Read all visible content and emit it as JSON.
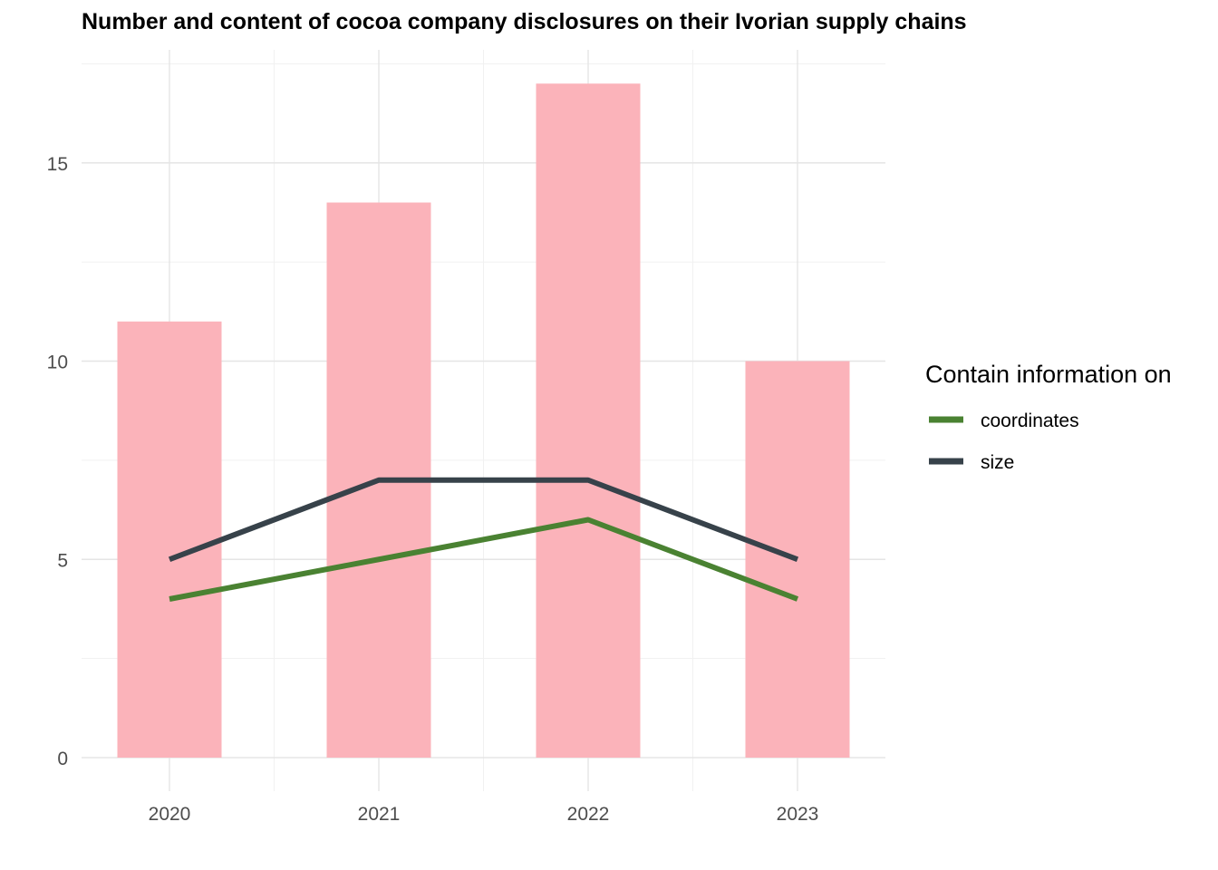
{
  "chart_data": {
    "type": "bar",
    "title": "Number and content of cocoa company disclosures on their Ivorian supply chains",
    "xlabel": "",
    "ylabel": "",
    "categories": [
      "2020",
      "2021",
      "2022",
      "2023"
    ],
    "bars": {
      "values": [
        11,
        14,
        17,
        10
      ],
      "color": "#fbb1b9"
    },
    "lines": [
      {
        "name": "coordinates",
        "values": [
          4,
          5,
          6,
          4
        ],
        "color": "#4a8232"
      },
      {
        "name": "size",
        "values": [
          5,
          7,
          7,
          5
        ],
        "color": "#37424a"
      }
    ],
    "ylim": [
      0,
      17.8
    ],
    "y_ticks": [
      0,
      5,
      10,
      15
    ],
    "grid": true,
    "legend": {
      "title": "Contain information on",
      "placement": "right"
    }
  }
}
